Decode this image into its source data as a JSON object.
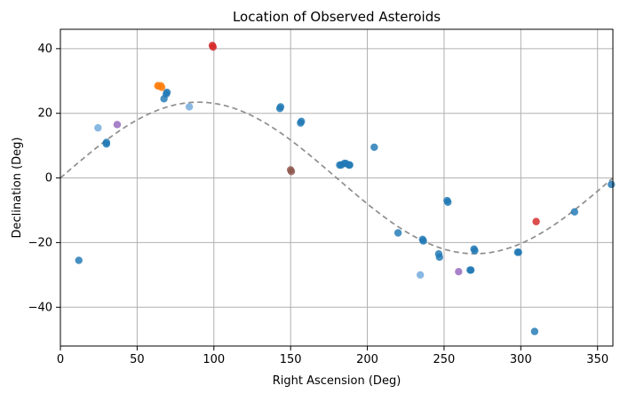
{
  "chart_data": {
    "type": "scatter",
    "title": "Location of Observed Asteroids",
    "xlabel": "Right Ascension (Deg)",
    "ylabel": "Declination (Deg)",
    "xlim": [
      0,
      360
    ],
    "ylim": [
      -52,
      46
    ],
    "xticks": [
      0,
      50,
      100,
      150,
      200,
      250,
      300,
      350
    ],
    "yticks": [
      -40,
      -20,
      0,
      20,
      40
    ],
    "grid": true,
    "series": [
      {
        "color": "#1f77b4",
        "points": [
          [
            12,
            -25.5
          ],
          [
            30,
            10.5
          ],
          [
            30,
            11
          ],
          [
            67.5,
            24.5
          ],
          [
            69,
            26
          ],
          [
            69.5,
            26.5
          ],
          [
            143,
            21.5
          ],
          [
            143.5,
            22
          ],
          [
            156.5,
            17
          ],
          [
            157,
            17.5
          ],
          [
            182,
            4
          ],
          [
            183,
            4
          ],
          [
            185,
            4.5
          ],
          [
            186,
            4.5
          ],
          [
            188,
            4
          ],
          [
            188.5,
            4
          ],
          [
            204.5,
            9.5
          ],
          [
            220,
            -17
          ],
          [
            236,
            -19
          ],
          [
            236.5,
            -19.5
          ],
          [
            246.5,
            -23.5
          ],
          [
            247,
            -24.5
          ],
          [
            252,
            -7
          ],
          [
            252.5,
            -7.5
          ],
          [
            267,
            -28.5
          ],
          [
            267.5,
            -28.5
          ],
          [
            269.5,
            -22
          ],
          [
            270,
            -22.5
          ],
          [
            298,
            -23
          ],
          [
            298.5,
            -23
          ],
          [
            309,
            -47.5
          ],
          [
            335,
            -10.5
          ],
          [
            359,
            -2
          ]
        ]
      },
      {
        "color": "#6fa8dc",
        "points": [
          [
            24.5,
            15.5
          ],
          [
            84,
            22
          ],
          [
            234.5,
            -30
          ]
        ]
      },
      {
        "color": "#9467bd",
        "points": [
          [
            37,
            16.5
          ],
          [
            259.5,
            -29
          ]
        ]
      },
      {
        "color": "#d62728",
        "points": [
          [
            99,
            41
          ],
          [
            99.5,
            40.5
          ],
          [
            310,
            -13.5
          ]
        ]
      },
      {
        "color": "#ff7f0e",
        "points": [
          [
            63.5,
            28.5
          ],
          [
            64,
            28.5
          ],
          [
            65.5,
            28.5
          ],
          [
            66,
            28
          ]
        ]
      },
      {
        "color": "#8c564b",
        "points": [
          [
            150,
            2.5
          ],
          [
            150.5,
            2
          ]
        ]
      }
    ],
    "reference_curve": {
      "style": "dashed",
      "color": "#8e8e8e",
      "function": "23.44 * sin(x)",
      "xmin": 0,
      "xmax": 360
    }
  }
}
